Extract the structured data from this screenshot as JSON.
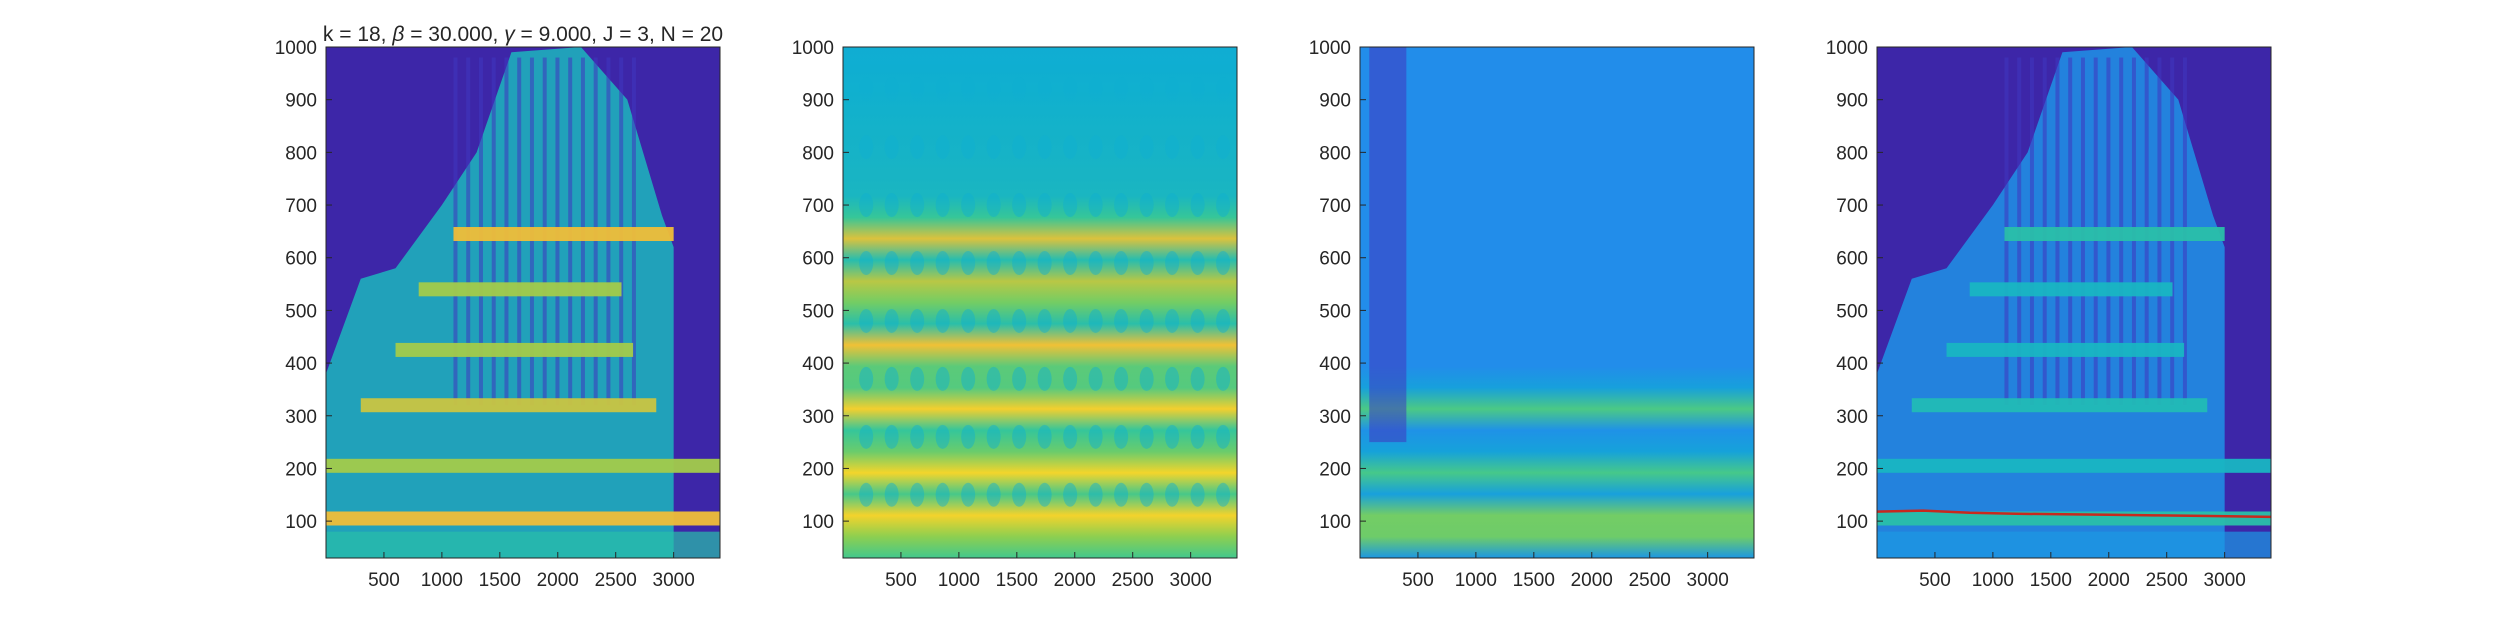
{
  "chart_data": [
    {
      "type": "heatmap",
      "title_parts": [
        "k = 18, ",
        "β",
        " = 30.000, ",
        "γ",
        " = 9.000, J = 3, N = 20"
      ],
      "xlim": [
        0,
        3400
      ],
      "ylim": [
        30,
        1000
      ],
      "xticks": [
        500,
        1000,
        1500,
        2000,
        2500,
        3000
      ],
      "yticks": [
        100,
        200,
        300,
        400,
        500,
        600,
        700,
        800,
        900,
        1000
      ],
      "colormap": "parula",
      "background_color": "#3d26a8",
      "ridges": [
        {
          "y": 105,
          "x": [
            0,
            3400
          ],
          "level": 0.85
        },
        {
          "y": 205,
          "x": [
            0,
            3400
          ],
          "level": 0.75
        },
        {
          "y": 320,
          "x": [
            300,
            2850
          ],
          "level": 0.8
        },
        {
          "y": 425,
          "x": [
            600,
            2650
          ],
          "level": 0.75
        },
        {
          "y": 540,
          "x": [
            800,
            2550
          ],
          "level": 0.75
        },
        {
          "y": 645,
          "x": [
            1100,
            3000
          ],
          "level": 0.85
        }
      ],
      "envelope_top": [
        [
          0,
          380
        ],
        [
          300,
          560
        ],
        [
          600,
          580
        ],
        [
          1000,
          700
        ],
        [
          1300,
          800
        ],
        [
          1600,
          990
        ],
        [
          2200,
          1000
        ],
        [
          2600,
          900
        ],
        [
          2900,
          680
        ],
        [
          3000,
          620
        ]
      ]
    },
    {
      "type": "heatmap",
      "title_parts": [],
      "xlim": [
        0,
        3400
      ],
      "ylim": [
        30,
        1000
      ],
      "xticks": [
        500,
        1000,
        1500,
        2000,
        2500,
        3000
      ],
      "yticks": [
        100,
        200,
        300,
        400,
        500,
        600,
        700,
        800,
        900,
        1000
      ],
      "colormap": "parula",
      "background_level": 0.62,
      "bright_bands": [
        100,
        200,
        320,
        425,
        540,
        645
      ]
    },
    {
      "type": "heatmap",
      "title_parts": [],
      "xlim": [
        0,
        3400
      ],
      "ylim": [
        30,
        1000
      ],
      "xticks": [
        500,
        1000,
        1500,
        2000,
        2500,
        3000
      ],
      "yticks": [
        100,
        200,
        300,
        400,
        500,
        600,
        700,
        800,
        900,
        1000
      ],
      "colormap": "parula",
      "background_level": 0.3,
      "bright_bands": [
        70,
        115,
        200,
        320
      ]
    },
    {
      "type": "heatmap",
      "title_parts": [],
      "xlim": [
        0,
        3400
      ],
      "ylim": [
        30,
        1000
      ],
      "xticks": [
        500,
        1000,
        1500,
        2000,
        2500,
        3000
      ],
      "yticks": [
        100,
        200,
        300,
        400,
        500,
        600,
        700,
        800,
        900,
        1000
      ],
      "colormap": "parula",
      "background_color": "#3d26a8",
      "overlay_line_color": "#c8281e",
      "overlay_line": [
        [
          0,
          118
        ],
        [
          400,
          120
        ],
        [
          800,
          116
        ],
        [
          1200,
          114
        ],
        [
          1600,
          113
        ],
        [
          2000,
          112
        ],
        [
          2400,
          111
        ],
        [
          2800,
          110
        ],
        [
          3400,
          108
        ]
      ]
    }
  ]
}
